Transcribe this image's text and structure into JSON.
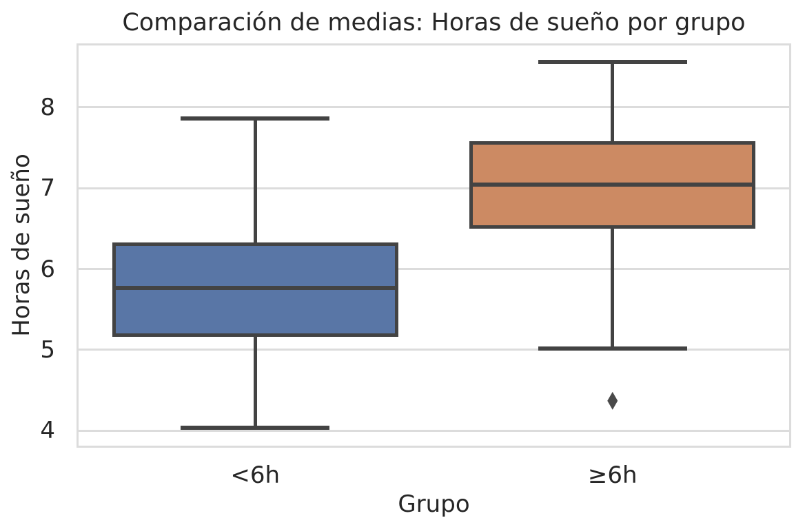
{
  "title": "Comparación de medias: Horas de sueño por grupo",
  "colors": {
    "background": "#ffffff",
    "text": "#262626",
    "grid": "#dcdcdc",
    "spine": "#dcdcdc",
    "box_line": "#434343",
    "group_blue": "#5976a6",
    "group_orange": "#cc8a63"
  },
  "chart_data": {
    "type": "box",
    "title": "Comparación de medias: Horas de sueño por grupo",
    "xlabel": "Grupo",
    "ylabel": "Horas de sueño",
    "categories": [
      "<6h",
      "≥6h"
    ],
    "yticks": [
      4,
      5,
      6,
      7,
      8
    ],
    "ylim": [
      3.79,
      8.79
    ],
    "grid": true,
    "legend": "none",
    "groups": [
      {
        "label": "<6h",
        "color": "#5976a6",
        "whisker_low": 4.04,
        "q1": 5.16,
        "median": 5.77,
        "q3": 6.33,
        "whisker_high": 7.86,
        "outliers": []
      },
      {
        "label": "≥6h",
        "color": "#cc8a63",
        "whisker_low": 5.02,
        "q1": 6.5,
        "median": 7.04,
        "q3": 7.58,
        "whisker_high": 8.56,
        "outliers": [
          4.37
        ]
      }
    ]
  }
}
